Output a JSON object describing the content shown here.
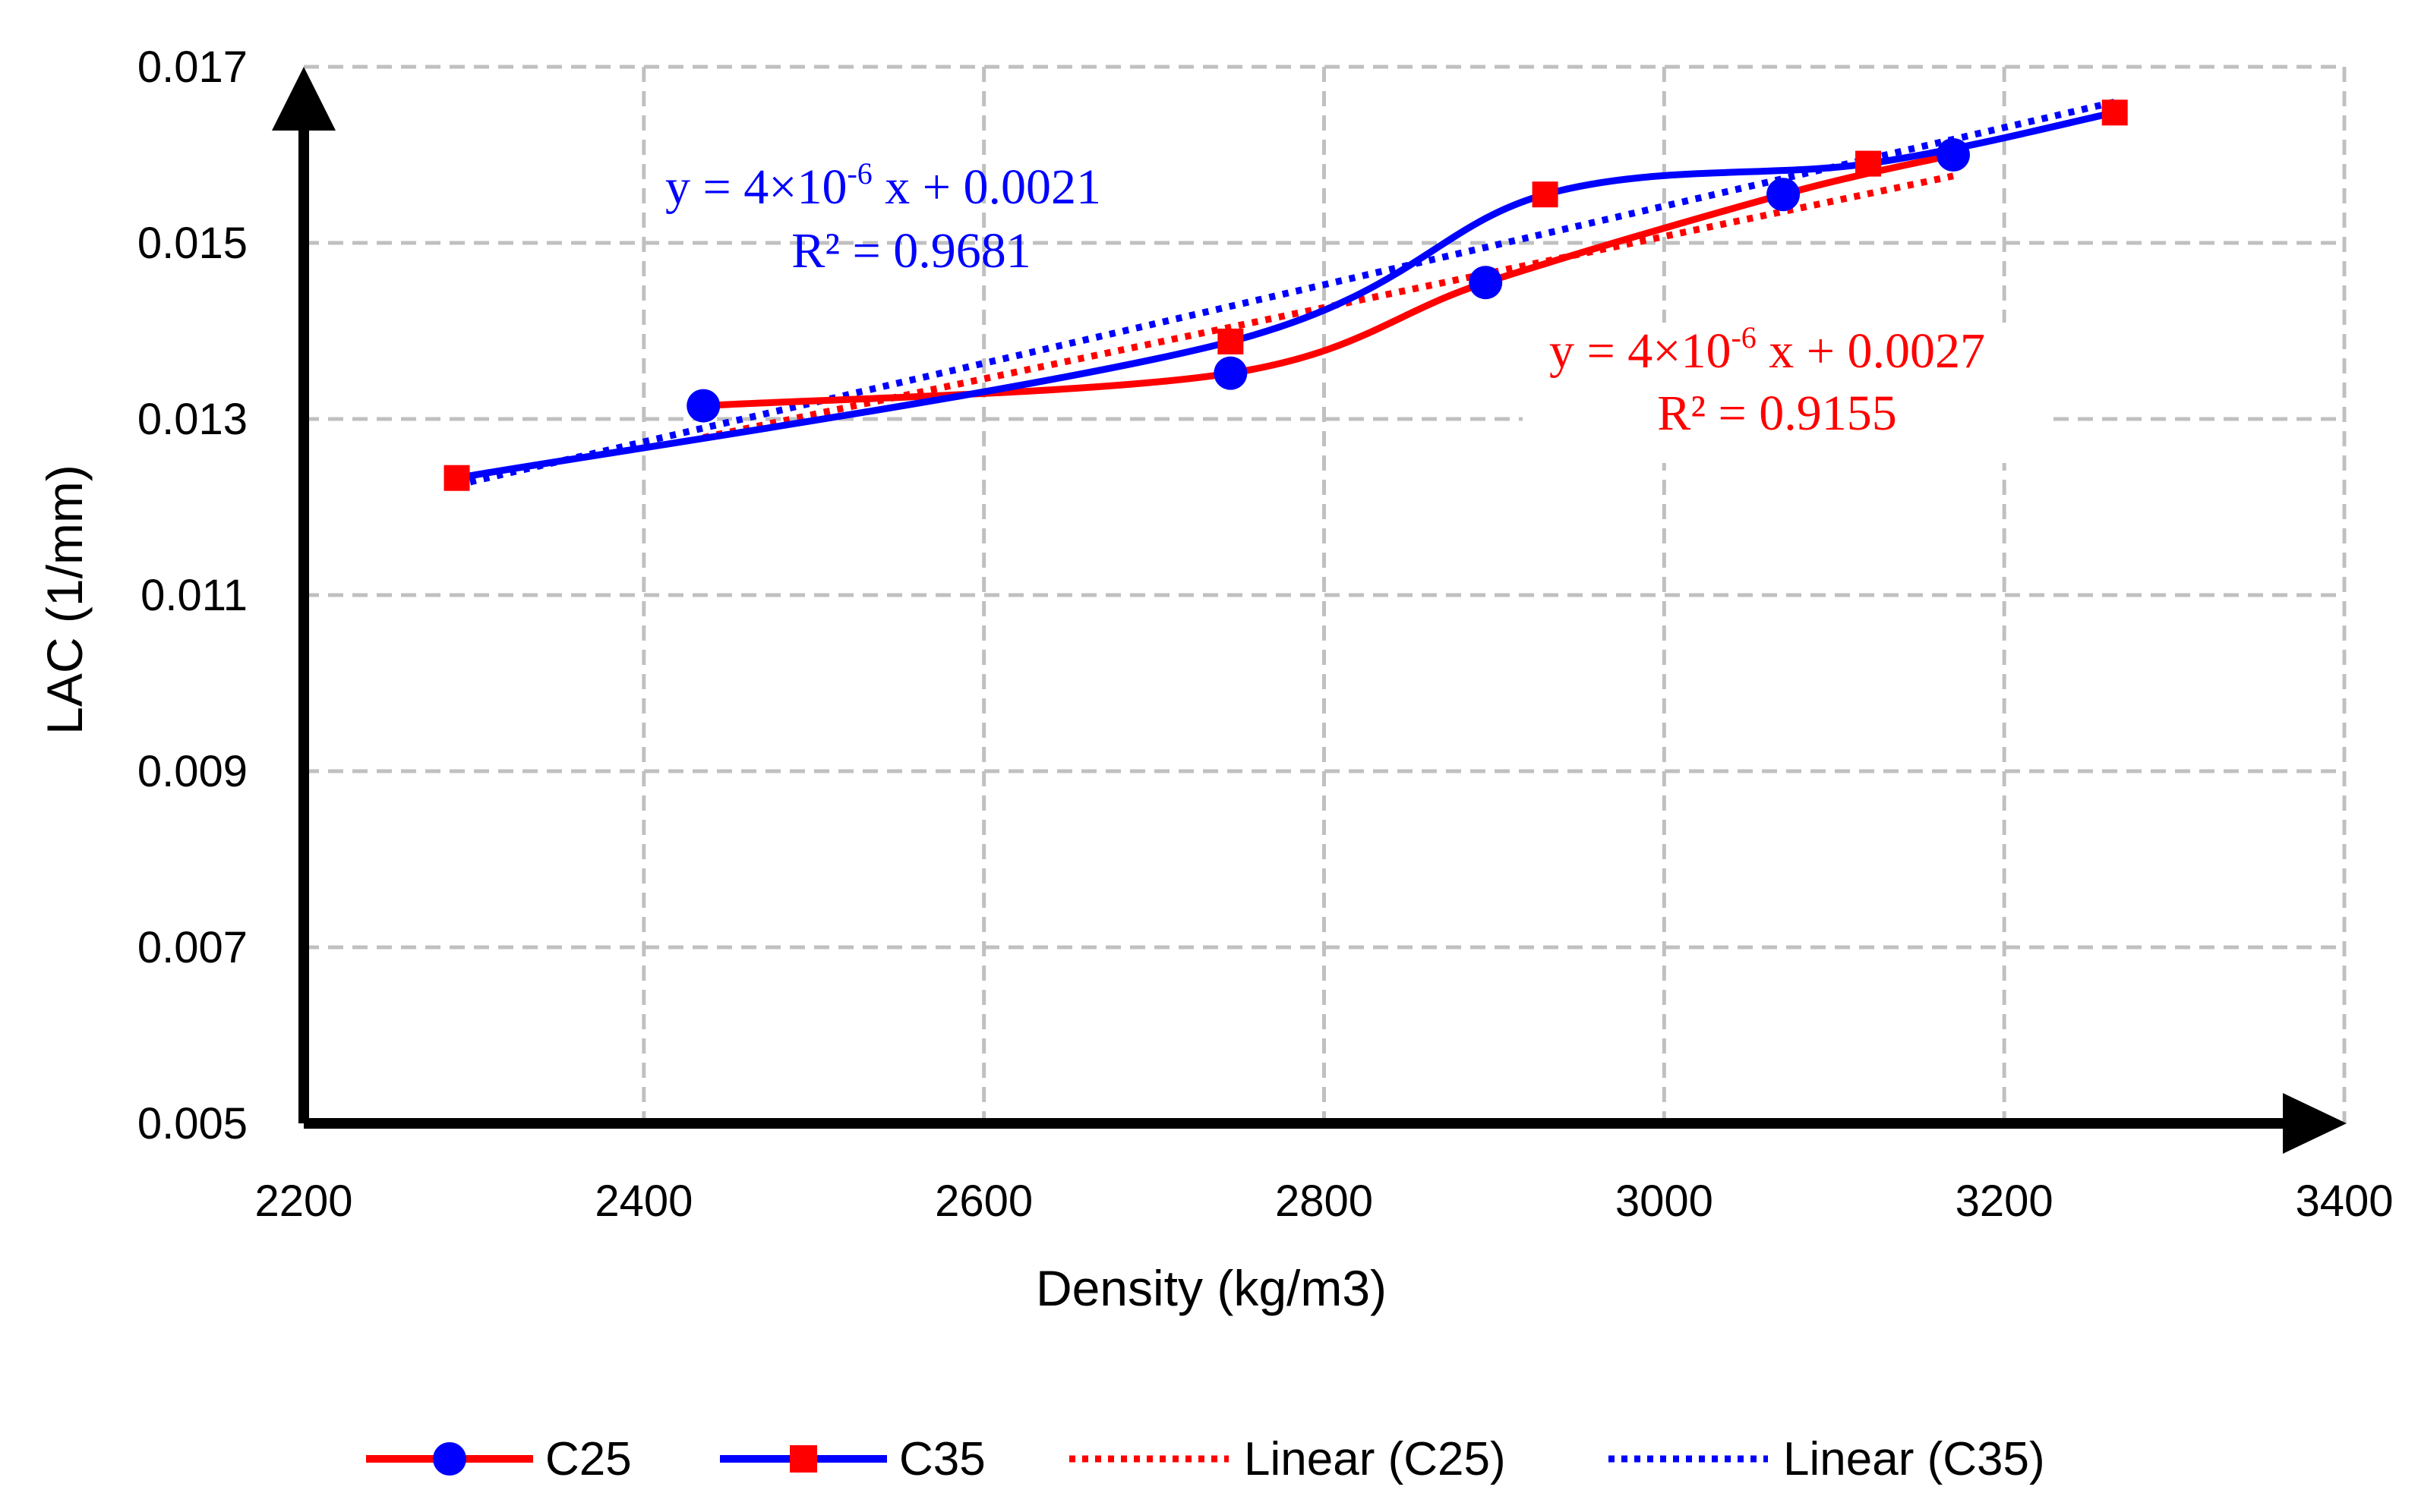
{
  "chart_data": {
    "type": "line",
    "title": "",
    "xlabel": "Density (kg/m3)",
    "ylabel": "LAC (1/mm)",
    "xlim": [
      2200,
      3400
    ],
    "ylim": [
      0.005,
      0.017
    ],
    "x_ticks": [
      "2200",
      "2400",
      "2600",
      "2800",
      "3000",
      "3200",
      "3400"
    ],
    "y_ticks": [
      "0.005",
      "0.007",
      "0.009",
      "0.011",
      "0.013",
      "0.015",
      "0.017"
    ],
    "grid": true,
    "series": [
      {
        "name": "C25",
        "color": "#ff0000",
        "marker": "circle",
        "marker_color": "#0000ff",
        "x": [
          2435,
          2745,
          2895,
          3070,
          3170
        ],
        "y": [
          0.01315,
          0.01352,
          0.01455,
          0.01555,
          0.016
        ]
      },
      {
        "name": "C35",
        "color": "#0000ff",
        "marker": "square",
        "marker_color": "#ff0000",
        "x": [
          2290,
          2745,
          2930,
          3120,
          3265
        ],
        "y": [
          0.01233,
          0.01388,
          0.01555,
          0.0159,
          0.01648
        ]
      }
    ],
    "trendlines": [
      {
        "name": "Linear (C25)",
        "color": "#ff0000",
        "style": "dotted",
        "x": [
          2435,
          3170
        ],
        "y": [
          0.01279,
          0.01576
        ]
      },
      {
        "name": "Linear (C35)",
        "color": "#0000ff",
        "style": "dotted",
        "x": [
          2290,
          3265
        ],
        "y": [
          0.01225,
          0.0166
        ]
      }
    ],
    "annotations": [
      {
        "series": "C35",
        "color": "#0000ff",
        "equation": {
          "prefix": "y = 4×10",
          "exp": "-6",
          "suffix": " x + 0.0021"
        },
        "r2": "R² = 0.9681"
      },
      {
        "series": "C25",
        "color": "#ff0000",
        "equation": {
          "prefix": "y = 4×10",
          "exp": "-6",
          "suffix": " x + 0.0027"
        },
        "r2": "R² = 0.9155"
      }
    ],
    "legend": {
      "position": "bottom",
      "items": [
        "C25",
        "C35",
        "Linear (C25)",
        "Linear (C35)"
      ]
    }
  }
}
